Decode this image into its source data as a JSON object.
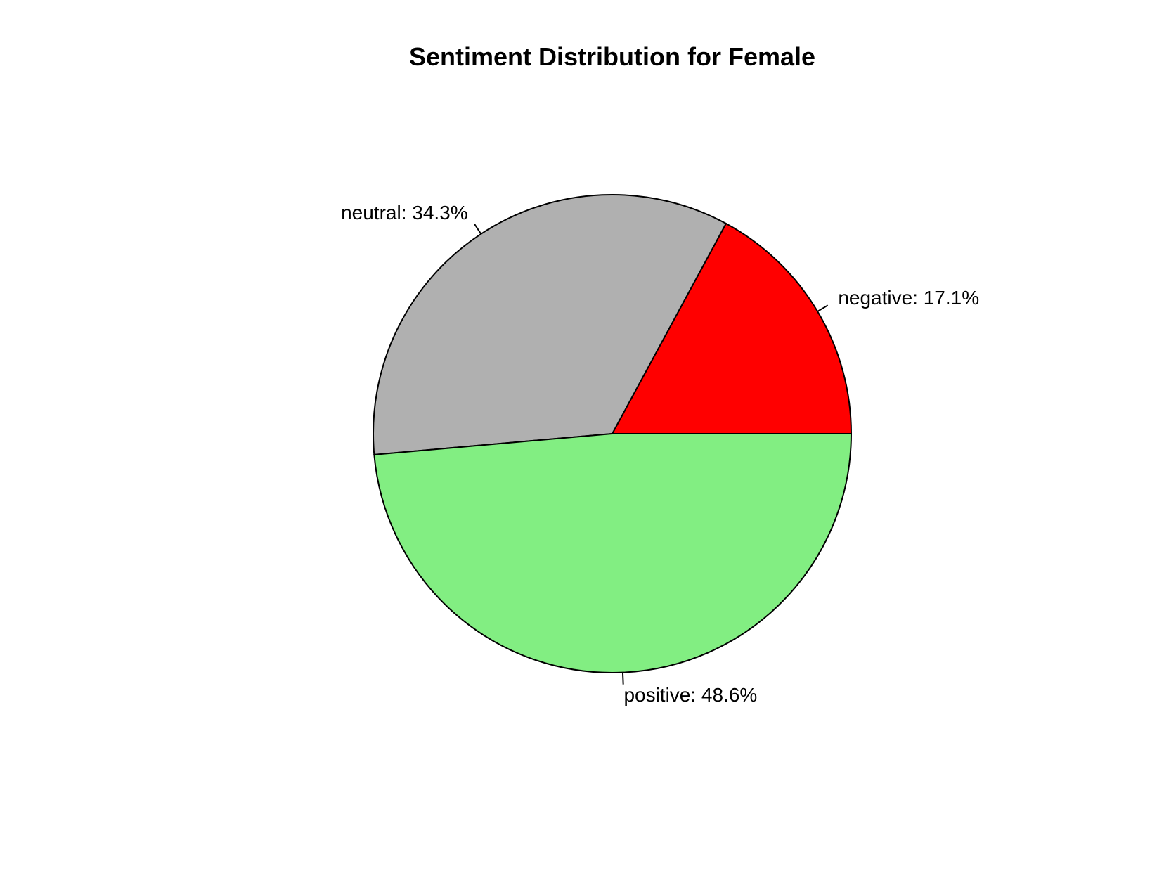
{
  "chart_data": {
    "type": "pie",
    "title": "Sentiment Distribution for Female",
    "direction": "counterclockwise",
    "start": "east",
    "slices": [
      {
        "category": "negative",
        "value": 17.1,
        "label": "negative: 17.1%",
        "color": "#ff0000"
      },
      {
        "category": "neutral",
        "value": 34.3,
        "label": "neutral: 34.3%",
        "color": "#b0b0b0"
      },
      {
        "category": "positive",
        "value": 48.6,
        "label": "positive: 48.6%",
        "color": "#82ee82"
      }
    ]
  }
}
